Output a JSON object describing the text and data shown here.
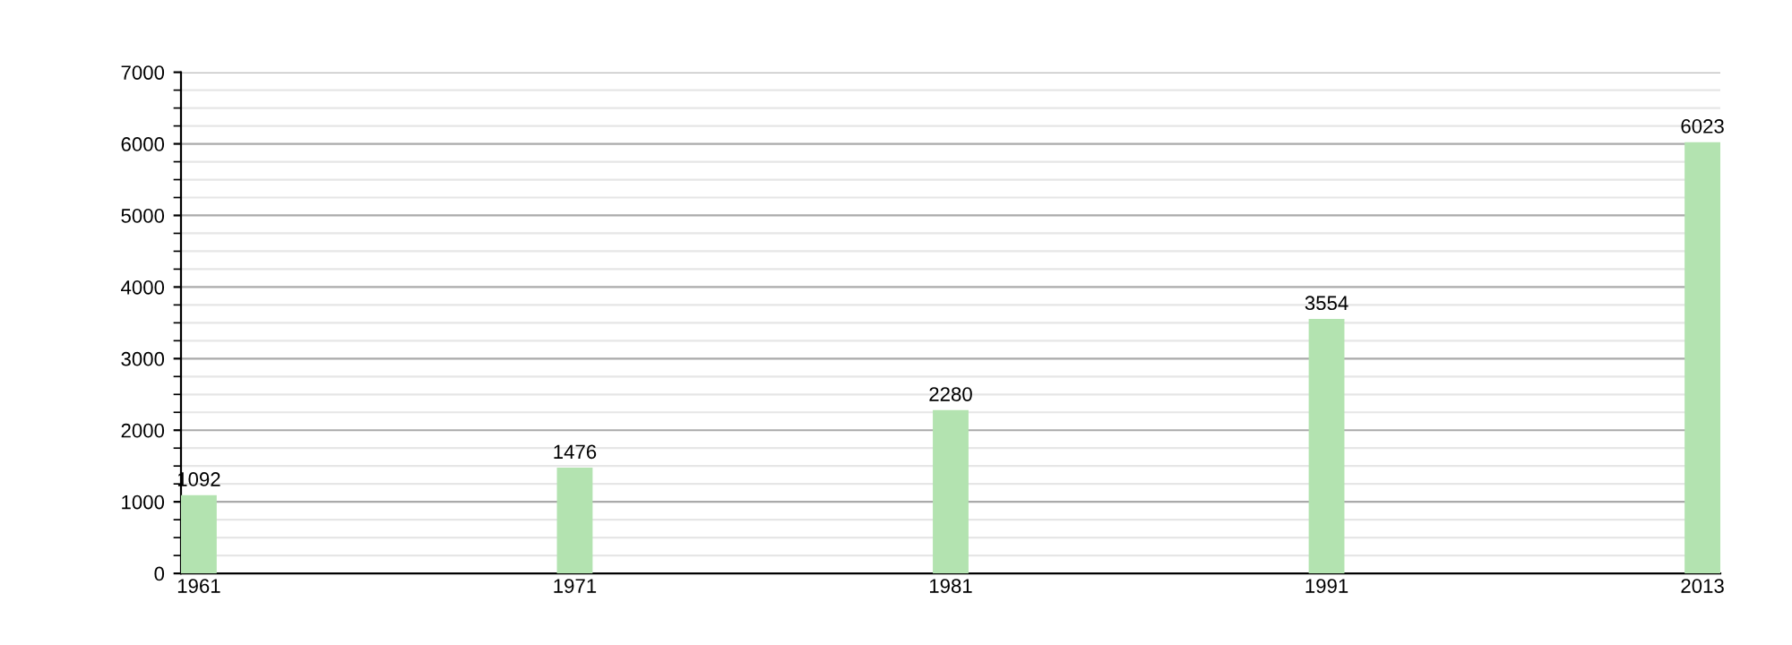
{
  "chart_data": {
    "type": "bar",
    "categories": [
      "1961",
      "1971",
      "1981",
      "1991",
      "2013"
    ],
    "values": [
      1092,
      1476,
      2280,
      3554,
      6023
    ],
    "color": "#b3e3b0",
    "ylim": [
      0,
      7000
    ],
    "yticks": [
      0,
      1000,
      2000,
      3000,
      4000,
      5000,
      6000,
      7000
    ],
    "grid": "y",
    "data_labels": true
  }
}
